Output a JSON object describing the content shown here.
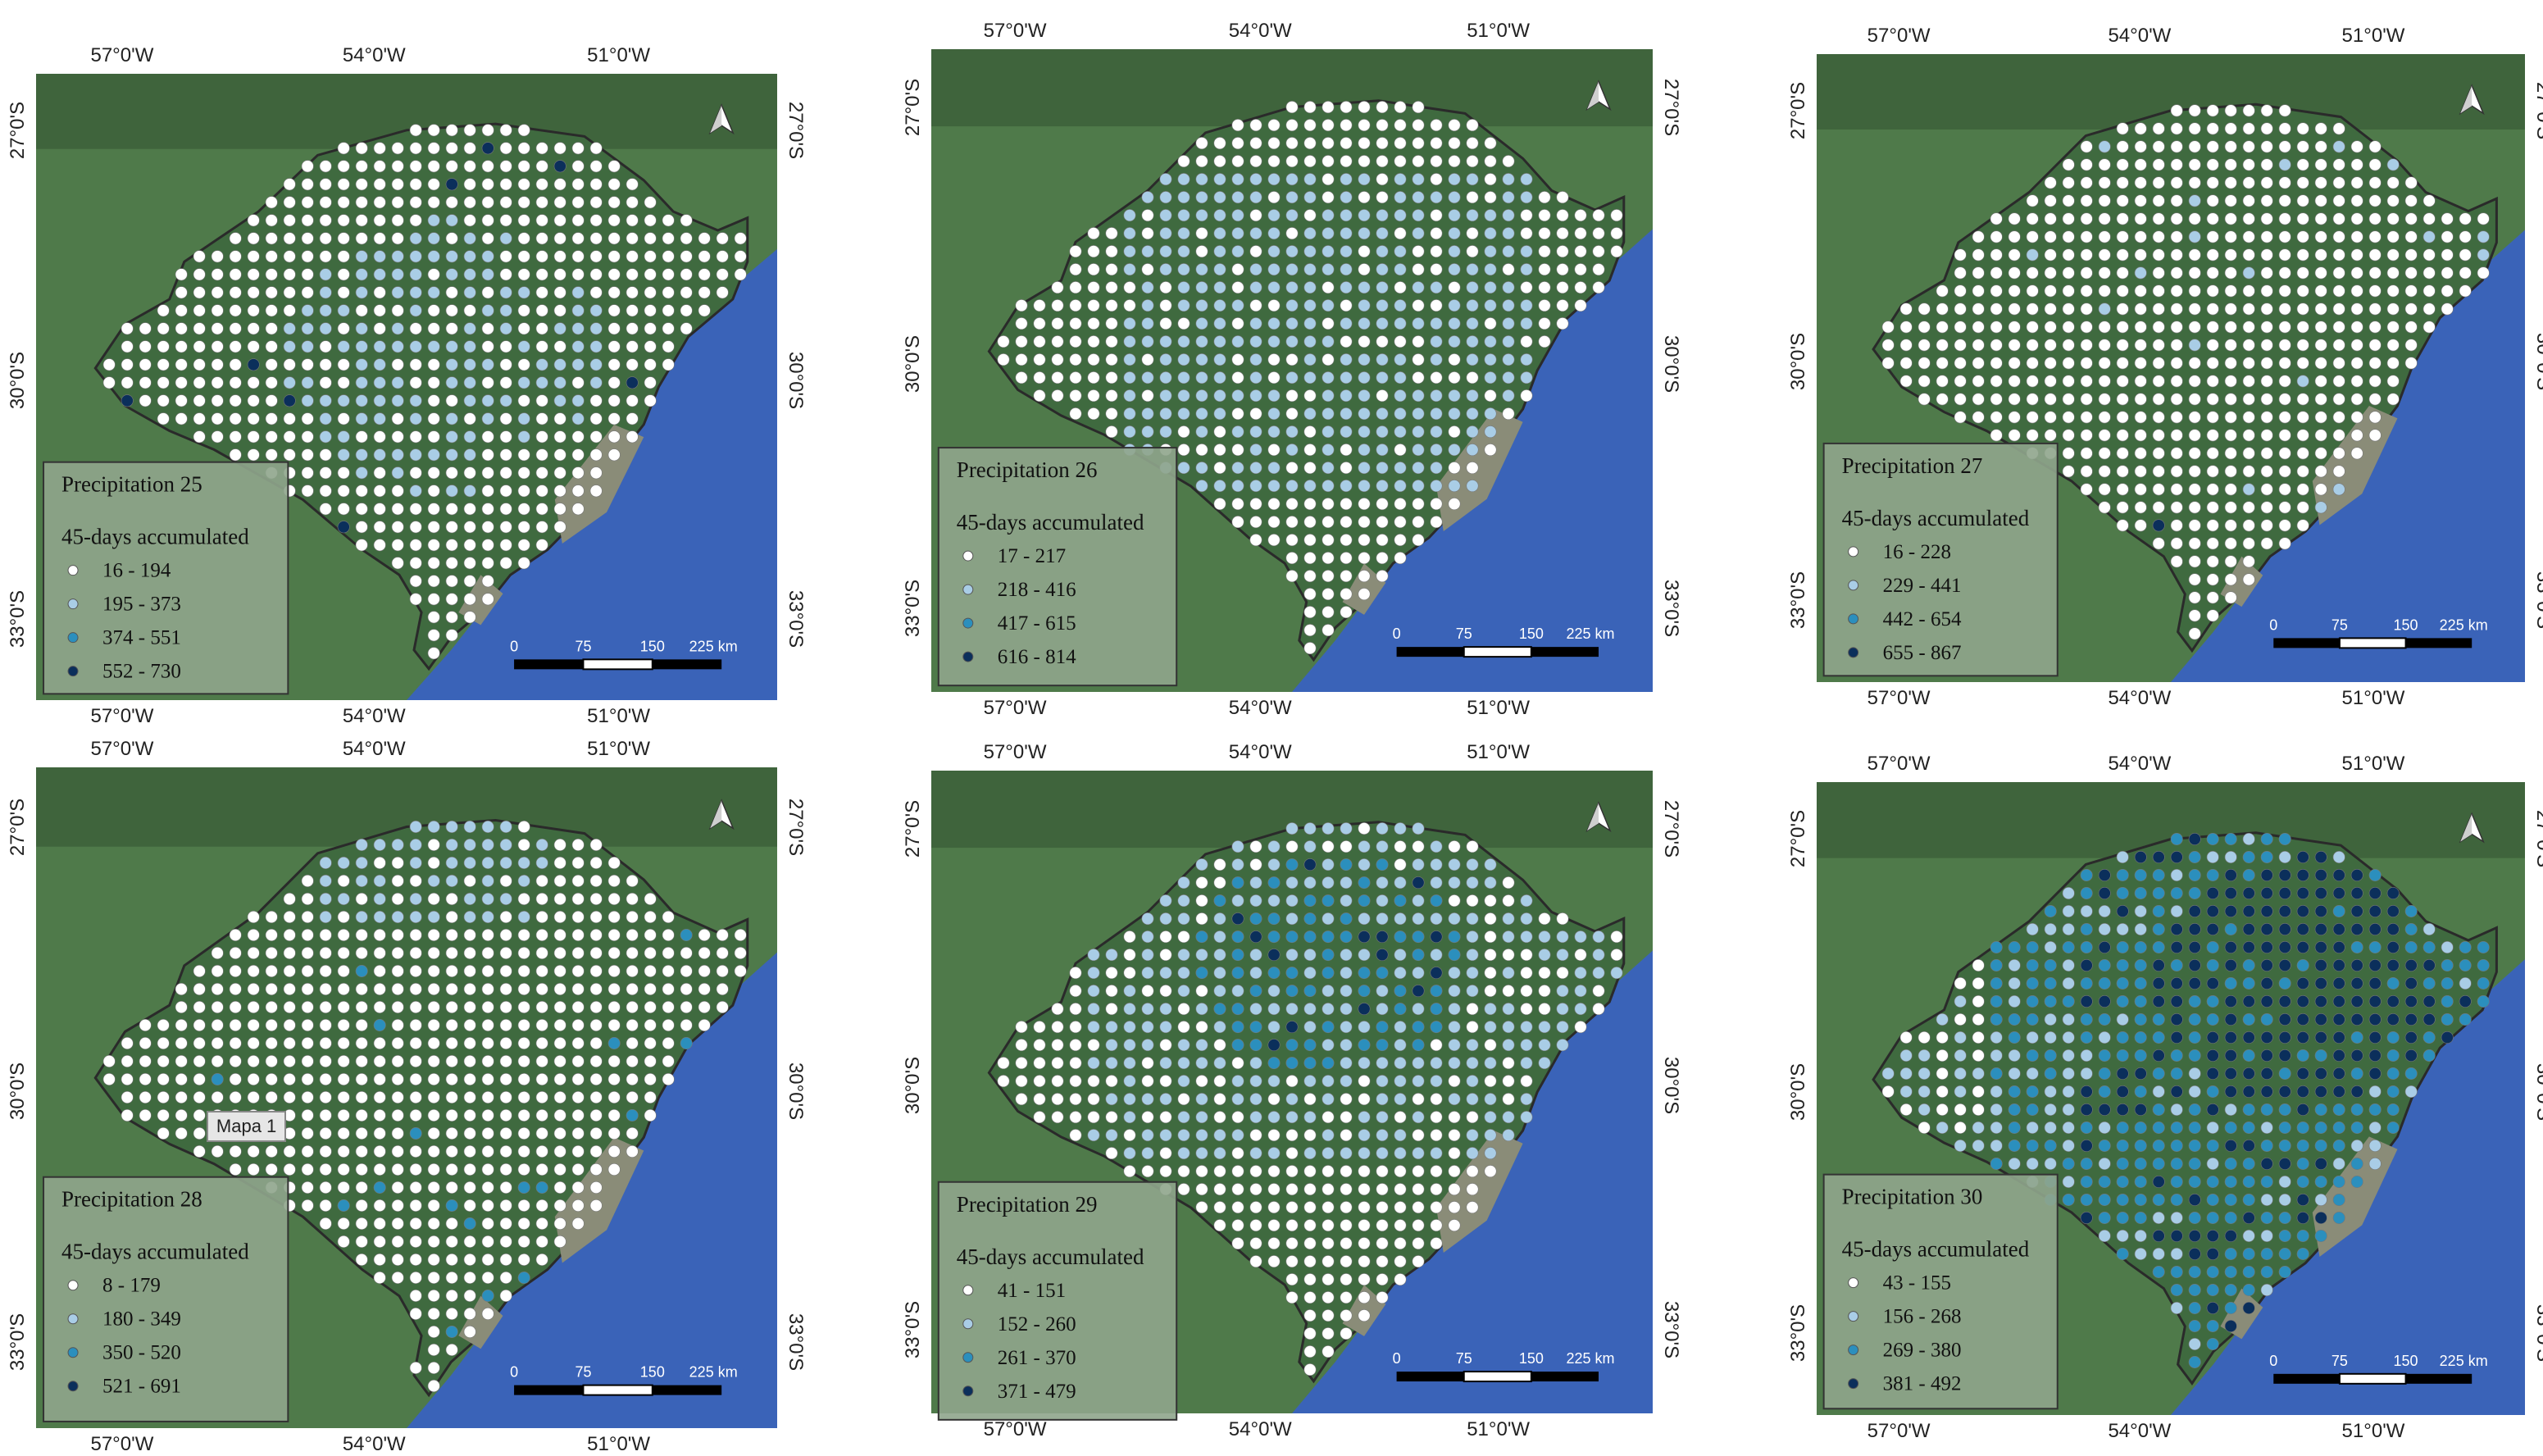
{
  "coordinates": {
    "lon": [
      "57°0'W",
      "54°0'W",
      "51°0'W"
    ],
    "lat": [
      "27°0'S",
      "30°0'S",
      "33°0'S"
    ]
  },
  "legend_subtitle": "45-days accumulated",
  "scale_bar": {
    "labels": [
      "0",
      "75",
      "150",
      "225 km"
    ]
  },
  "north_arrow": "north-arrow-icon",
  "class_colors": [
    "#ffffff",
    "#a9cde6",
    "#2b8fbd",
    "#0b2f5b"
  ],
  "map_colors": {
    "land": "#4f7a4a",
    "region": "#3f6a3f",
    "ocean": "#3a63b8",
    "lagoon": "#8a8c78",
    "border": "#2a2a2a"
  },
  "panels": [
    {
      "title": "Precipitation 25",
      "classes": [
        "16 - 194",
        "195 - 373",
        "374 - 551",
        "552 - 730"
      ],
      "pattern": "p25"
    },
    {
      "title": "Precipitation 26",
      "classes": [
        "17 - 217",
        "218 - 416",
        "417 - 615",
        "616 - 814"
      ],
      "pattern": "p26"
    },
    {
      "title": "Precipitation 27",
      "classes": [
        "16 - 228",
        "229 - 441",
        "442 - 654",
        "655 - 867"
      ],
      "pattern": "p27"
    },
    {
      "title": "Precipitation 28",
      "classes": [
        "8 - 179",
        "180 - 349",
        "350 - 520",
        "521 - 691"
      ],
      "pattern": "p28",
      "tooltip": "Mapa 1"
    },
    {
      "title": "Precipitation 29",
      "classes": [
        "41 - 151",
        "152 - 260",
        "261 - 370",
        "371 - 479"
      ],
      "pattern": "p29"
    },
    {
      "title": "Precipitation 30",
      "classes": [
        "43 - 155",
        "156 - 268",
        "269 - 380",
        "381 - 492"
      ],
      "pattern": "p30"
    }
  ]
}
